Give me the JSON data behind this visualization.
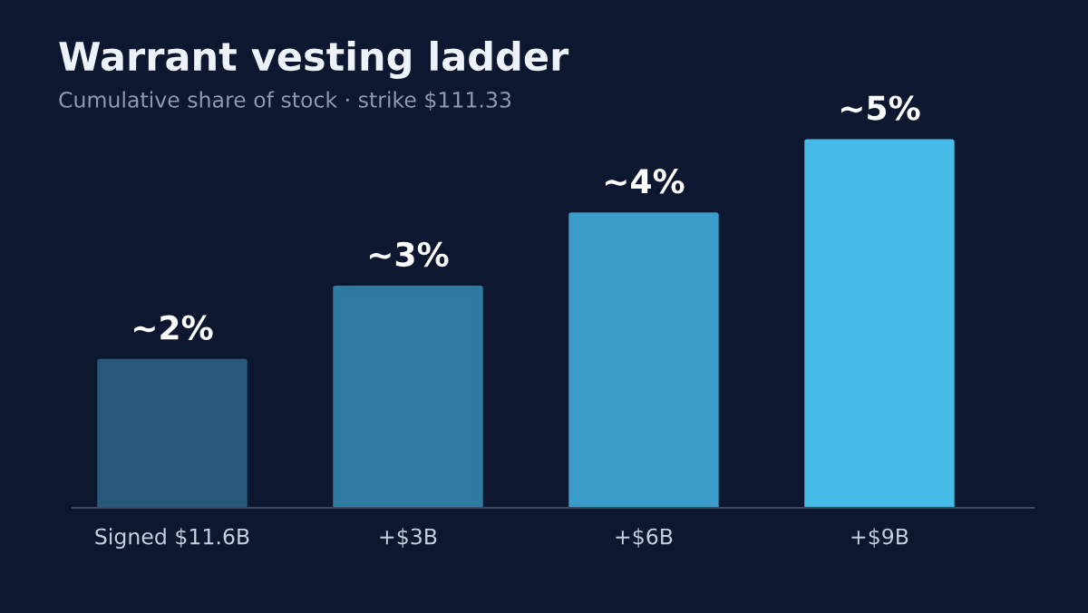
{
  "chart_data": {
    "type": "bar",
    "title": "Warrant vesting ladder",
    "subtitle": "Cumulative share of stock · strike $111.33",
    "categories": [
      "Signed $11.6B",
      "+$3B",
      "+$6B",
      "+$9B"
    ],
    "values": [
      2,
      3,
      4,
      5
    ],
    "value_labels": [
      "~2%",
      "~3%",
      "~4%",
      "~5%"
    ],
    "colors": [
      "#28597c",
      "#2f7a9f",
      "#3b9bc9",
      "#47bbe8"
    ],
    "tick_labels": "x",
    "grid": false
  }
}
